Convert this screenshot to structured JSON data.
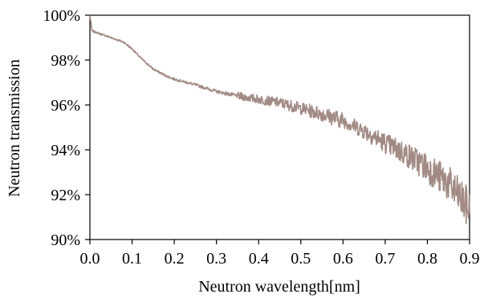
{
  "chart_data": {
    "type": "line",
    "title": "",
    "xlabel": "Neutron wavelength[nm]",
    "ylabel": "Neutron transmission",
    "xlim": [
      0.0,
      0.9
    ],
    "ylim": [
      90,
      100
    ],
    "x_ticks": [
      "0.0",
      "0.1",
      "0.2",
      "0.3",
      "0.4",
      "0.5",
      "0.6",
      "0.7",
      "0.8",
      "0.9"
    ],
    "x_tick_values": [
      0.0,
      0.1,
      0.2,
      0.3,
      0.4,
      0.5,
      0.6,
      0.7,
      0.8,
      0.9
    ],
    "y_ticks": [
      "90%",
      "92%",
      "94%",
      "96%",
      "98%",
      "100%"
    ],
    "y_tick_values": [
      90,
      92,
      94,
      96,
      98,
      100
    ],
    "grid": false,
    "legend": "none",
    "series": [
      {
        "color": "#a28b84",
        "x": [
          0.0,
          0.005,
          0.02,
          0.05,
          0.08,
          0.1,
          0.12,
          0.15,
          0.18,
          0.2,
          0.25,
          0.3,
          0.35,
          0.4,
          0.45,
          0.5,
          0.55,
          0.6,
          0.65,
          0.7,
          0.75,
          0.8,
          0.85,
          0.88,
          0.9
        ],
        "y": [
          100.0,
          99.3,
          99.2,
          99.0,
          98.8,
          98.5,
          98.1,
          97.6,
          97.3,
          97.15,
          96.9,
          96.6,
          96.4,
          96.25,
          96.1,
          95.85,
          95.6,
          95.3,
          94.85,
          94.3,
          93.8,
          93.2,
          92.5,
          91.8,
          91.3
        ]
      }
    ]
  }
}
